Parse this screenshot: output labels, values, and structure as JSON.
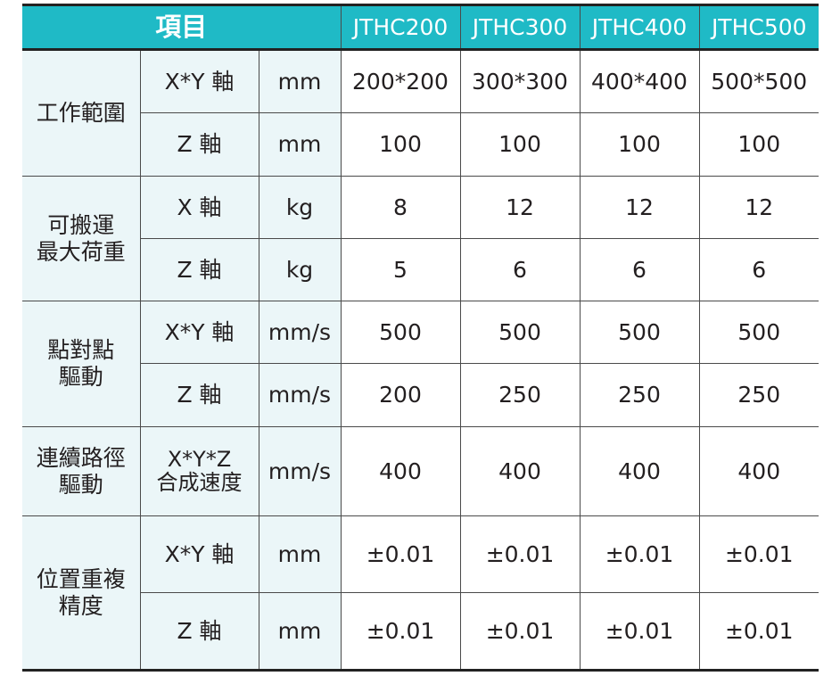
{
  "header": {
    "item": "項目",
    "models": [
      "JTHC200",
      "JTHC300",
      "JTHC400",
      "JTHC500"
    ]
  },
  "groups": [
    {
      "name": "工作範圍",
      "rows": [
        {
          "axis": "X*Y 軸",
          "unit": "mm",
          "values": [
            "200*200",
            "300*300",
            "400*400",
            "500*500"
          ]
        },
        {
          "axis": "Z 軸",
          "unit": "mm",
          "values": [
            "100",
            "100",
            "100",
            "100"
          ]
        }
      ]
    },
    {
      "name": "可搬運\n最大荷重",
      "rows": [
        {
          "axis": "X 軸",
          "unit": "kg",
          "values": [
            "8",
            "12",
            "12",
            "12"
          ]
        },
        {
          "axis": "Z 軸",
          "unit": "kg",
          "values": [
            "5",
            "6",
            "6",
            "6"
          ]
        }
      ]
    },
    {
      "name": "點對點\n驅動",
      "rows": [
        {
          "axis": "X*Y 軸",
          "unit": "mm/s",
          "values": [
            "500",
            "500",
            "500",
            "500"
          ]
        },
        {
          "axis": "Z 軸",
          "unit": "mm/s",
          "values": [
            "200",
            "250",
            "250",
            "250"
          ]
        }
      ]
    },
    {
      "name": "連續路徑\n驅動",
      "rows": [
        {
          "axis": "X*Y*Z\n合成速度",
          "unit": "mm/s",
          "values": [
            "400",
            "400",
            "400",
            "400"
          ]
        }
      ]
    },
    {
      "name": "位置重複\n精度",
      "rows": [
        {
          "axis": "X*Y 軸",
          "unit": "mm",
          "values": [
            "±0.01",
            "±0.01",
            "±0.01",
            "±0.01"
          ]
        },
        {
          "axis": "Z 軸",
          "unit": "mm",
          "values": [
            "±0.01",
            "±0.01",
            "±0.01",
            "±0.01"
          ]
        }
      ]
    }
  ]
}
